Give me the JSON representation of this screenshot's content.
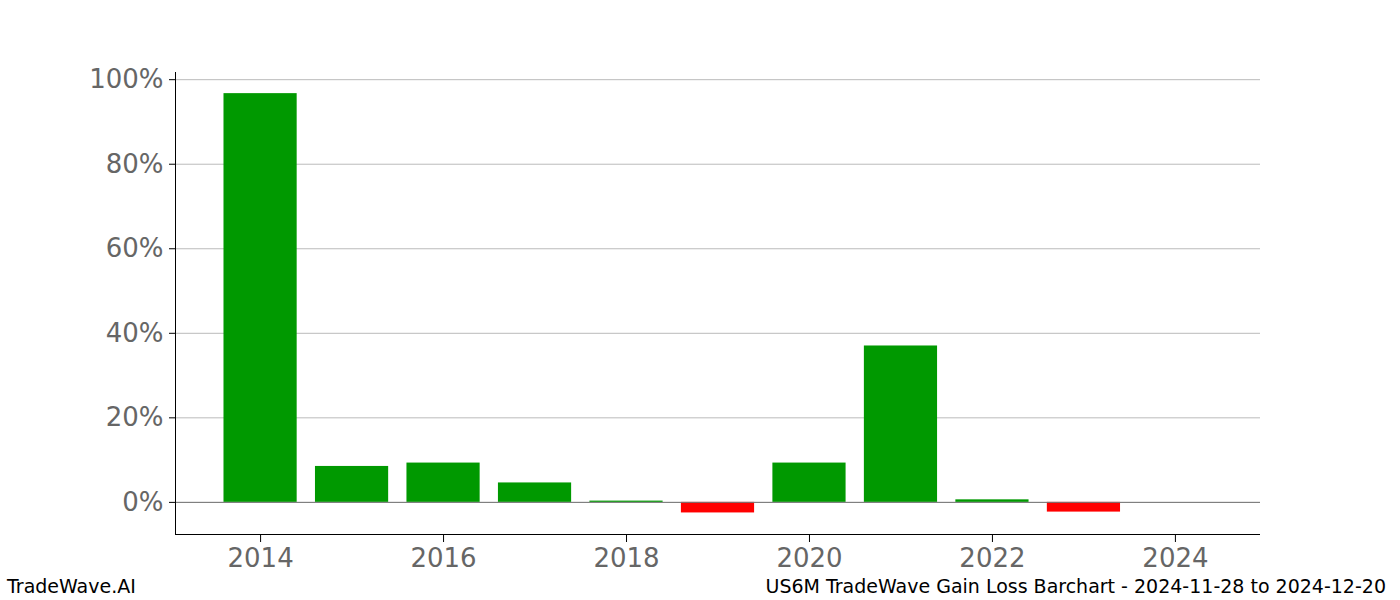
{
  "chart_data": {
    "type": "bar",
    "title": "US6M TradeWave Gain Loss Barchart - 2024-11-28 to 2024-12-20",
    "source": "TradeWave.AI",
    "x": [
      2014,
      2015,
      2016,
      2017,
      2018,
      2019,
      2020,
      2021,
      2022,
      2023,
      2024
    ],
    "values": [
      96.7,
      8.5,
      9.3,
      4.6,
      0.3,
      -2.5,
      9.3,
      37.0,
      0.6,
      -2.3,
      0
    ],
    "colors": [
      "#009900",
      "#009900",
      "#009900",
      "#009900",
      "#009900",
      "#ff0000",
      "#009900",
      "#009900",
      "#009900",
      "#ff0000",
      "#009900"
    ],
    "xlim": [
      2013.07,
      2024.93
    ],
    "xticks": [
      2014,
      2016,
      2018,
      2020,
      2022,
      2024
    ],
    "ylim": [
      -7.6,
      101.7
    ],
    "yticks": [
      {
        "value": 0,
        "label": "0%"
      },
      {
        "value": 20,
        "label": "20%"
      },
      {
        "value": 40,
        "label": "40%"
      },
      {
        "value": 60,
        "label": "60%"
      },
      {
        "value": 80,
        "label": "80%"
      },
      {
        "value": 100,
        "label": "100%"
      }
    ],
    "grid": true
  }
}
